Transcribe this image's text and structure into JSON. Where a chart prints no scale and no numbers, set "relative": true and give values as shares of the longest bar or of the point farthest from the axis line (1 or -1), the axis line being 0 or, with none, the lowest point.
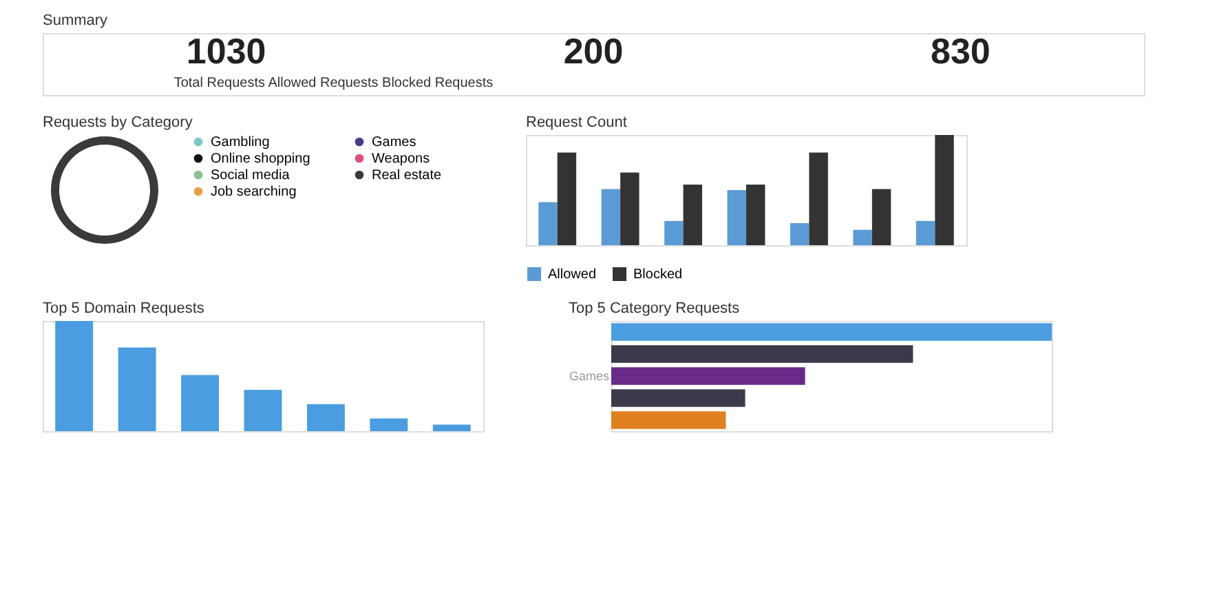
{
  "chart_data": [
    {
      "type": "other",
      "title": "Summary",
      "annotations": [
        "1030",
        "200",
        "830",
        "Total Requests Allowed Requests Blocked Requests"
      ]
    },
    {
      "type": "donut",
      "title": "Requests by Category",
      "categories": [
        "Gambling",
        "Games",
        "Online shopping",
        "Weapons",
        "Social media",
        "Real estate",
        "Job searching"
      ],
      "values": [
        0,
        0,
        0,
        0,
        0,
        100,
        0
      ],
      "colors": [
        "#7ec8c8",
        "#4a3a8a",
        "#111111",
        "#e0507a",
        "#8cc08c",
        "#3a3a3a",
        "#e8a040"
      ],
      "legend": "right"
    },
    {
      "type": "bar",
      "title": "Request Count",
      "relative": true,
      "categories": [
        null,
        null,
        null,
        null,
        null,
        null,
        null
      ],
      "legend": "bottom",
      "series": [
        {
          "name": "Allowed",
          "color": "#5b9bd5",
          "values": [
            0.39,
            0.51,
            0.22,
            0.5,
            0.2,
            0.14,
            0.22
          ]
        },
        {
          "name": "Blocked",
          "color": "#333333",
          "values": [
            0.84,
            0.66,
            0.55,
            0.55,
            0.84,
            0.51,
            1
          ]
        }
      ]
    },
    {
      "type": "bar",
      "title": "Top 5 Domain Requests",
      "relative": true,
      "categories": [
        null,
        null,
        null,
        null,
        null,
        null,
        null
      ],
      "color": "#4a9de0",
      "values": [
        1,
        0.76,
        0.51,
        0.375,
        0.245,
        0.115,
        0.06
      ]
    },
    {
      "type": "bar",
      "title": "Top 5 Category Requests",
      "relative": true,
      "orientation": "horizontal",
      "categories": [
        null,
        null,
        "Games",
        null,
        null
      ],
      "values": [
        1,
        0.685,
        0.44,
        0.304,
        0.26
      ],
      "colors": [
        "#4a9de0",
        "#3a3a4a",
        "#6a2a8a",
        "#3a3a4a",
        "#e08020"
      ]
    }
  ]
}
